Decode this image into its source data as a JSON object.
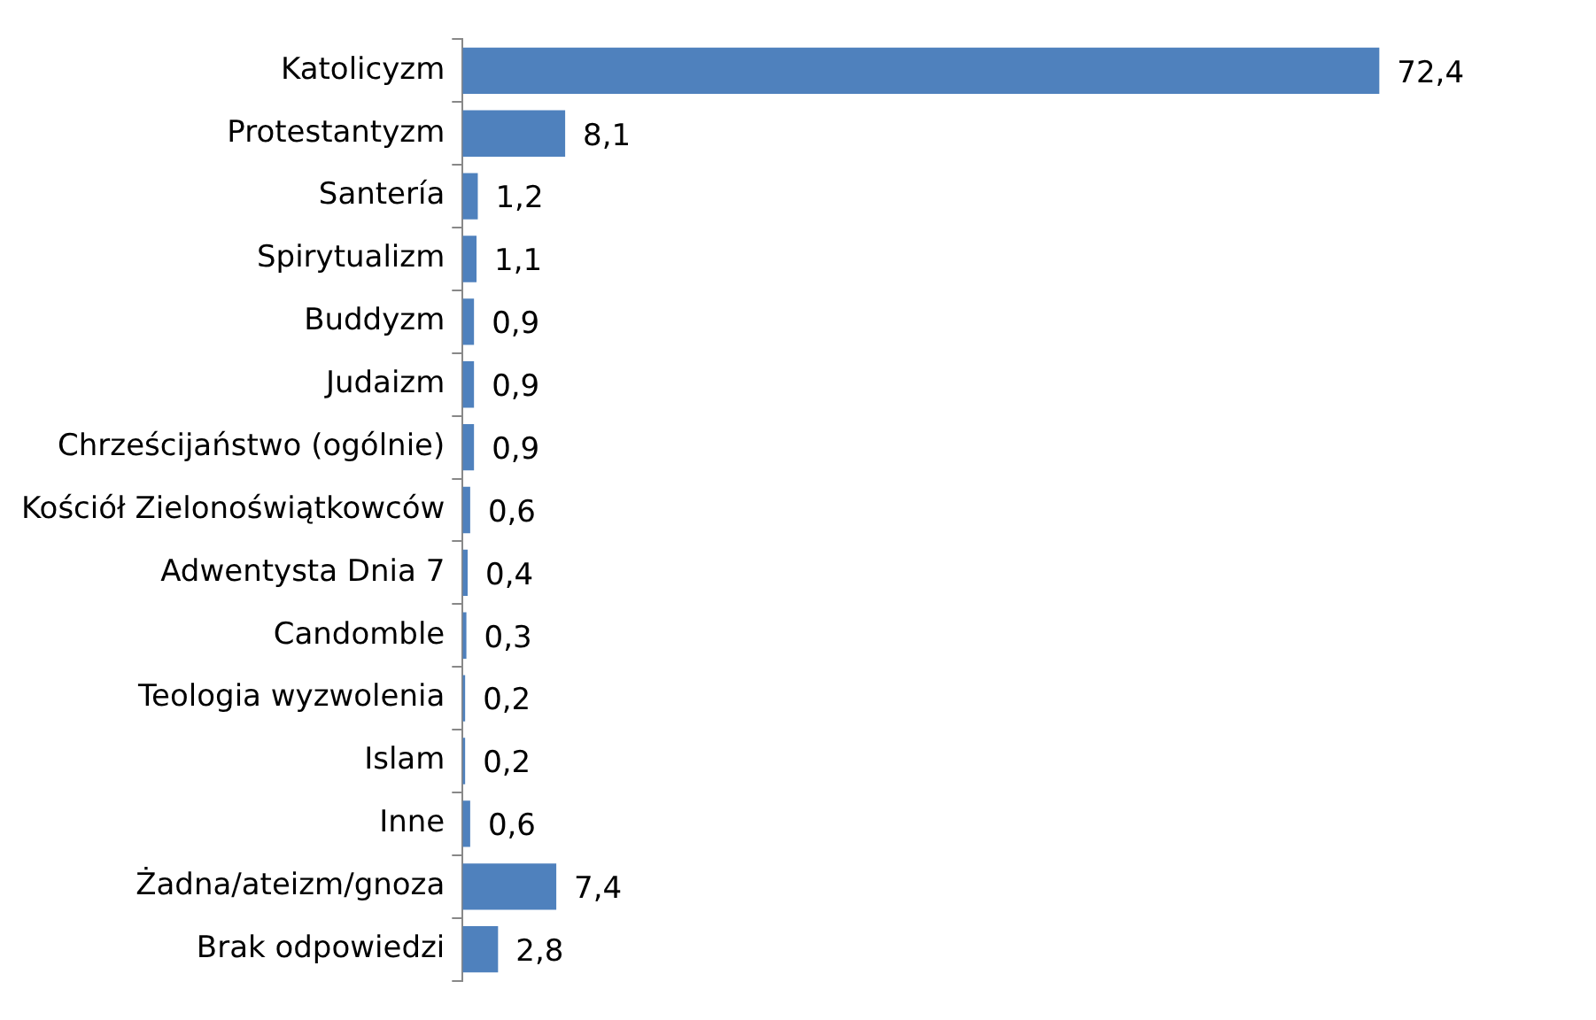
{
  "chart_data": {
    "type": "bar",
    "orientation": "horizontal",
    "categories": [
      "Katolicyzm",
      "Protestantyzm",
      "Santería",
      "Spirytualizm",
      "Buddyzm",
      "Judaizm",
      "Chrześcijaństwo (ogólnie)",
      "Kościół Zielonoświątkowców",
      "Adwentysta Dnia 7",
      "Candomble",
      "Teologia wyzwolenia",
      "Islam",
      "Inne",
      "Żadna/ateizm/gnoza",
      "Brak odpowiedzi"
    ],
    "values": [
      72.4,
      8.1,
      1.2,
      1.1,
      0.9,
      0.9,
      0.9,
      0.6,
      0.4,
      0.3,
      0.2,
      0.2,
      0.6,
      7.4,
      2.8
    ],
    "value_labels": [
      "72,4",
      "8,1",
      "1,2",
      "1,1",
      "0,9",
      "0,9",
      "0,9",
      "0,6",
      "0,4",
      "0,3",
      "0,2",
      "0,2",
      "0,6",
      "7,4",
      "2,8"
    ],
    "color": "#4f81bd",
    "grid": false,
    "legend": false
  }
}
